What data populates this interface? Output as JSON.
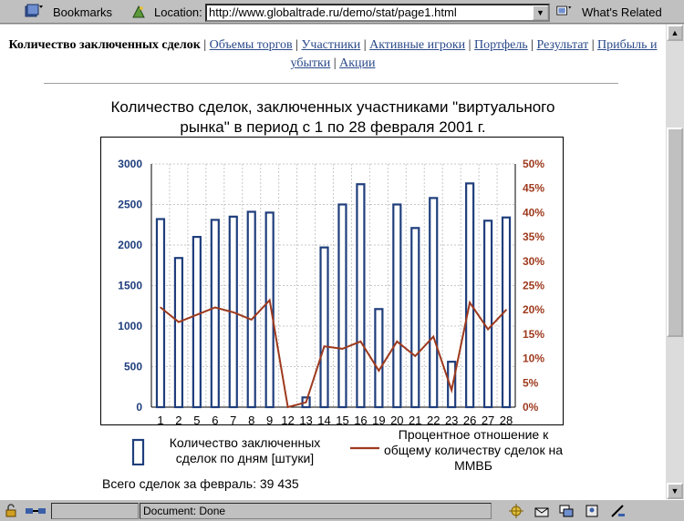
{
  "toolbar": {
    "bookmarks_label": "Bookmarks",
    "location_label": "Location:",
    "url": "http://www.globaltrade.ru/demo/stat/page1.html",
    "related_label": "What's Related"
  },
  "nav": {
    "current": "Количество заключенных сделок",
    "links": [
      "Объемы торгов",
      "Участники",
      "Активные игроки",
      "Портфель",
      "Результат",
      "Прибыль и убытки",
      "Акции"
    ]
  },
  "page": {
    "title_line1": "Количество сделок, заключенных участниками \"виртуального",
    "title_line2": "рынка\" в период с 1 по 28 февраля 2001 г.",
    "legend_bar": "Количество заключенных сделок по дням [штуки]",
    "legend_line": "Процентное отношение к общему количеству сделок на ММВБ",
    "total": "Всего сделок за февраль: 39 435"
  },
  "chart_data": {
    "type": "bar",
    "categories": [
      "1",
      "2",
      "5",
      "6",
      "7",
      "8",
      "9",
      "12",
      "13",
      "14",
      "15",
      "16",
      "19",
      "20",
      "21",
      "22",
      "23",
      "26",
      "27",
      "28"
    ],
    "series": [
      {
        "name": "Количество заключенных сделок по дням [штуки]",
        "type": "bar",
        "axis": "left",
        "values": [
          2320,
          1840,
          2100,
          2310,
          2350,
          2410,
          2400,
          0,
          120,
          1970,
          2500,
          2750,
          1210,
          2500,
          2210,
          2580,
          560,
          2760,
          2300,
          2340
        ]
      },
      {
        "name": "Процентное отношение к общему количеству сделок на ММВБ",
        "type": "line",
        "axis": "right",
        "values": [
          20.5,
          17.5,
          19.0,
          20.5,
          19.5,
          18.0,
          22.0,
          0,
          1.0,
          12.5,
          12.0,
          13.5,
          7.5,
          13.5,
          10.5,
          14.5,
          3.5,
          21.5,
          16.0,
          20.0
        ]
      }
    ],
    "ylim_left": [
      0,
      3000
    ],
    "yticks_left": [
      0,
      500,
      1000,
      1500,
      2000,
      2500,
      3000
    ],
    "ylim_right": [
      0,
      50
    ],
    "yticks_right": [
      "0%",
      "5%",
      "10%",
      "15%",
      "20%",
      "25%",
      "30%",
      "35%",
      "40%",
      "45%",
      "50%"
    ],
    "grid": true,
    "colors": {
      "bar": "#1f3e7c",
      "line": "#9e3a1e",
      "left_axis_text": "#1f3e7c",
      "right_axis_text": "#9e3a1e"
    }
  },
  "status": {
    "text": "Document: Done"
  }
}
